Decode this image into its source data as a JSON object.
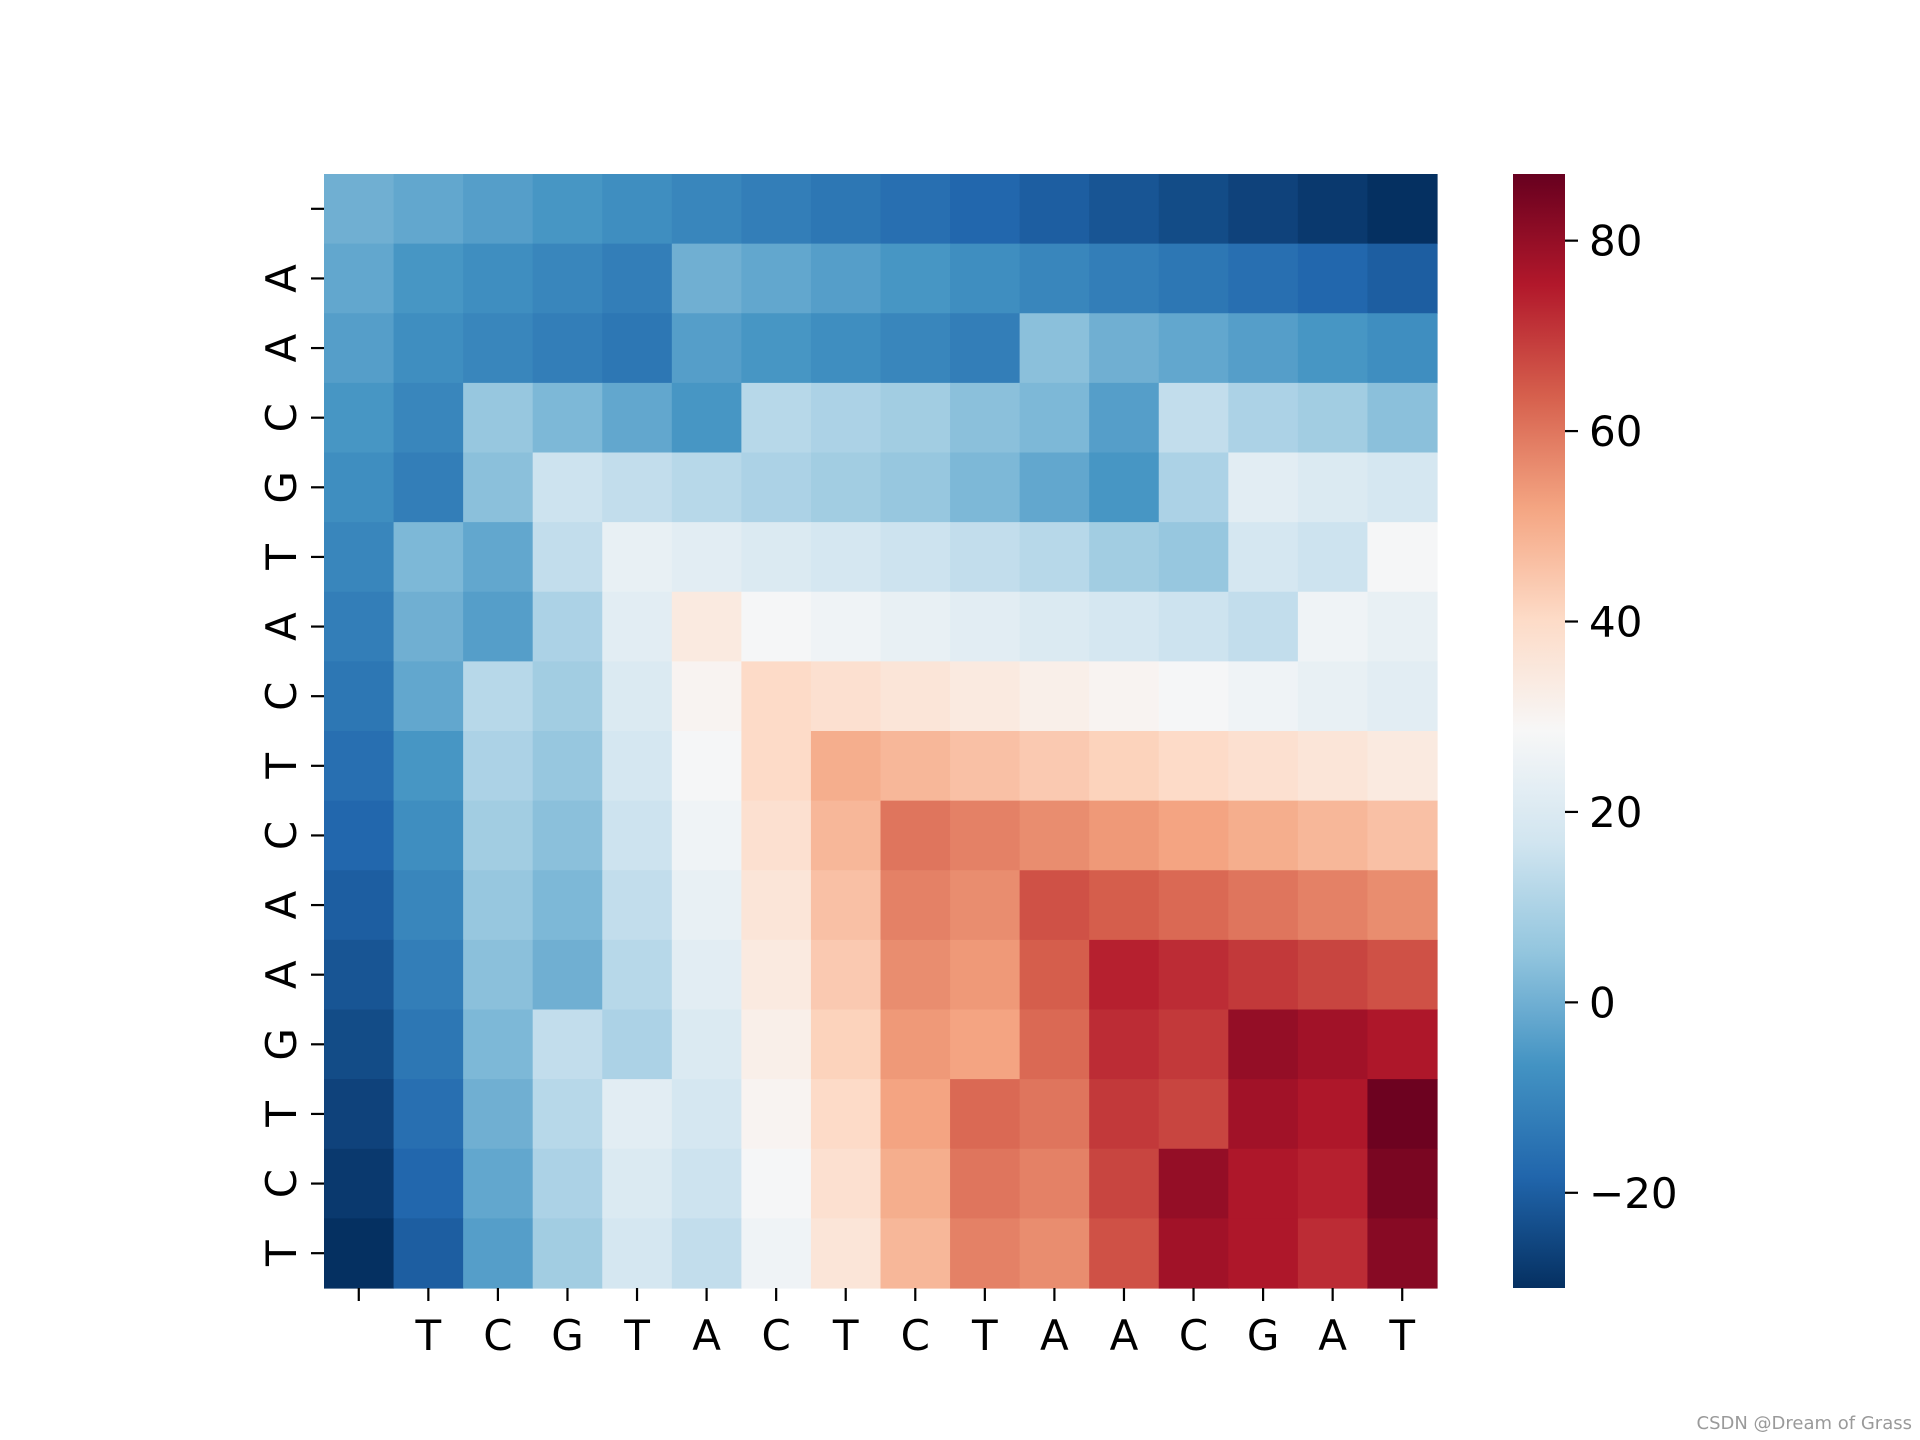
{
  "watermark": "CSDN @Dream of Grass",
  "chart_data": {
    "type": "heatmap",
    "colormap": "RdBu_r",
    "colorbar": {
      "vmin": -30,
      "vmax": 87,
      "ticks": [
        -20,
        0,
        20,
        40,
        60,
        80
      ],
      "tick_labels": [
        "−20",
        "0",
        "20",
        "40",
        "60",
        "80"
      ]
    },
    "x_labels": [
      "",
      "T",
      "C",
      "G",
      "T",
      "A",
      "C",
      "T",
      "C",
      "T",
      "A",
      "A",
      "C",
      "G",
      "A",
      "T"
    ],
    "y_labels": [
      "",
      "A",
      "A",
      "C",
      "G",
      "T",
      "A",
      "C",
      "T",
      "C",
      "A",
      "A",
      "G",
      "T",
      "C",
      "T"
    ],
    "values": [
      [
        0,
        -2,
        -4,
        -6,
        -8,
        -10,
        -12,
        -14,
        -16,
        -18,
        -20,
        -22,
        -24,
        -26,
        -28,
        -30
      ],
      [
        -2,
        -6,
        -8,
        -10,
        -12,
        0,
        -2,
        -4,
        -6,
        -8,
        -10,
        -12,
        -14,
        -16,
        -18,
        -20
      ],
      [
        -4,
        -8,
        -10,
        -12,
        -14,
        -4,
        -6,
        -8,
        -10,
        -12,
        4,
        0,
        -2,
        -4,
        -6,
        -8
      ],
      [
        -6,
        -10,
        6,
        2,
        -2,
        -6,
        12,
        10,
        8,
        4,
        2,
        -4,
        14,
        10,
        8,
        4
      ],
      [
        -8,
        -12,
        4,
        16,
        14,
        12,
        10,
        8,
        6,
        2,
        -2,
        -6,
        10,
        22,
        20,
        18
      ],
      [
        -10,
        2,
        -2,
        14,
        24,
        22,
        20,
        18,
        16,
        14,
        12,
        8,
        6,
        18,
        16,
        28
      ],
      [
        -12,
        0,
        -4,
        10,
        22,
        34,
        28,
        26,
        24,
        22,
        20,
        18,
        16,
        14,
        26,
        24
      ],
      [
        -14,
        -2,
        12,
        8,
        20,
        30,
        40,
        38,
        36,
        34,
        32,
        30,
        28,
        26,
        24,
        22
      ],
      [
        -16,
        -6,
        10,
        6,
        18,
        28,
        40,
        50,
        48,
        46,
        44,
        42,
        40,
        38,
        36,
        34
      ],
      [
        -18,
        -8,
        8,
        4,
        16,
        26,
        38,
        48,
        60,
        58,
        56,
        54,
        52,
        50,
        48,
        46
      ],
      [
        -20,
        -10,
        6,
        2,
        14,
        24,
        36,
        46,
        58,
        56,
        66,
        64,
        62,
        60,
        58,
        56
      ],
      [
        -22,
        -12,
        4,
        0,
        12,
        22,
        34,
        44,
        56,
        54,
        64,
        74,
        72,
        70,
        68,
        66
      ],
      [
        -24,
        -14,
        2,
        14,
        10,
        20,
        32,
        42,
        54,
        52,
        62,
        72,
        70,
        80,
        78,
        76
      ],
      [
        -26,
        -16,
        0,
        12,
        22,
        18,
        30,
        40,
        52,
        62,
        60,
        70,
        68,
        78,
        76,
        86
      ],
      [
        -28,
        -18,
        -2,
        10,
        20,
        16,
        28,
        38,
        50,
        60,
        58,
        68,
        80,
        76,
        74,
        84
      ],
      [
        -30,
        -20,
        -4,
        8,
        18,
        14,
        26,
        36,
        48,
        58,
        56,
        66,
        78,
        76,
        72,
        82
      ]
    ]
  }
}
